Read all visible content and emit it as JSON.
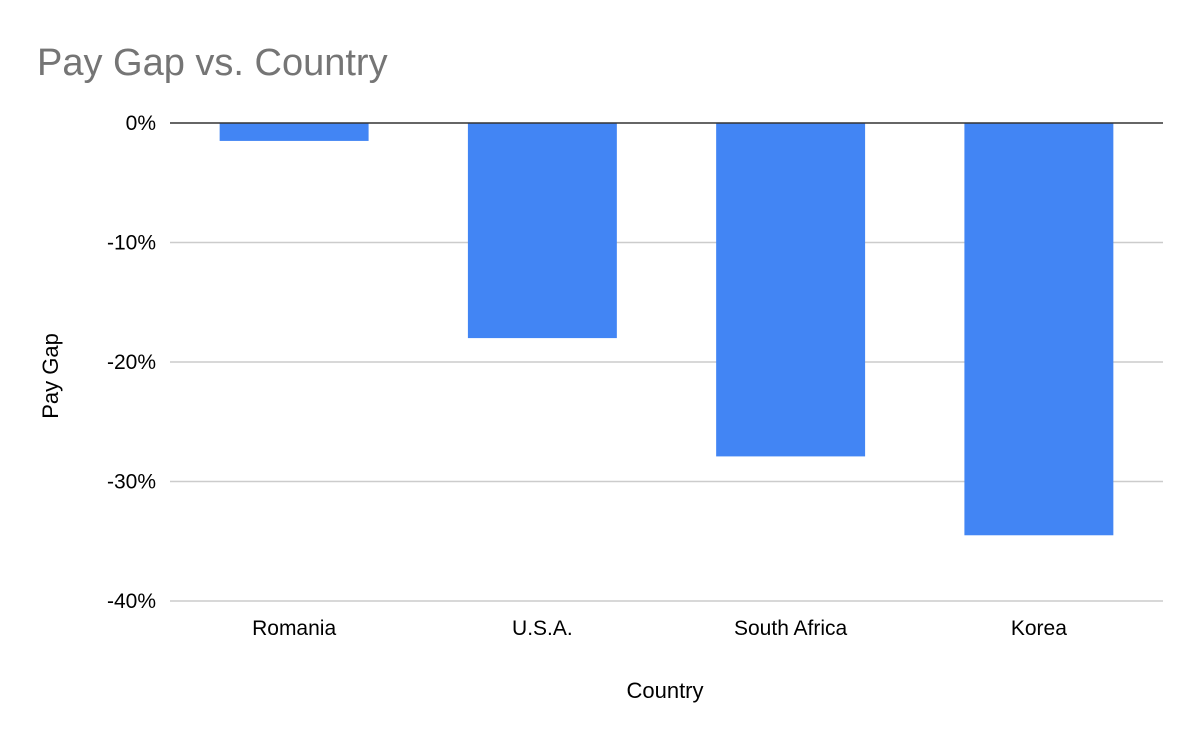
{
  "chart_data": {
    "type": "bar",
    "title": "Pay Gap vs. Country",
    "xlabel": "Country",
    "ylabel": "Pay Gap",
    "categories": [
      "Romania",
      "U.S.A.",
      "South Africa",
      "Korea"
    ],
    "values": [
      -1.5,
      -18.0,
      -27.9,
      -34.5
    ],
    "value_unit": "%",
    "ylim": [
      -40,
      0
    ],
    "yticks": [
      0,
      -10,
      -20,
      -30,
      -40
    ],
    "ytick_labels": [
      "0%",
      "-10%",
      "-20%",
      "-30%",
      "-40%"
    ],
    "grid": true,
    "legend": "none",
    "bar_color": "#4285f4"
  }
}
